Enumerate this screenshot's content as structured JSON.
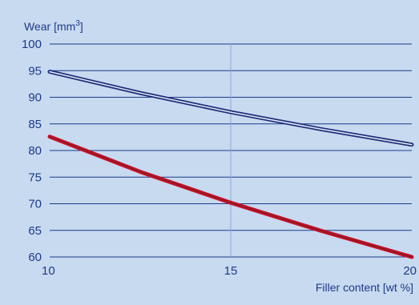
{
  "chart_data": {
    "type": "line",
    "xlabel": "Filler content [wt %]",
    "ylabel": {
      "prefix": "Wear [mm",
      "superscript": "3",
      "suffix": "]"
    },
    "xlim": [
      10,
      20
    ],
    "ylim": [
      60,
      100
    ],
    "x_ticks": [
      10,
      15,
      20
    ],
    "y_ticks": [
      60,
      65,
      70,
      75,
      80,
      85,
      90,
      95,
      100
    ],
    "grid": "horizontal lines at every y tick; one vertical line at x = 15",
    "legend": "none",
    "series": [
      {
        "color": "#1f2f7a",
        "points": [
          [
            10,
            94.8
          ],
          [
            12.5,
            90.8
          ],
          [
            15,
            87.2
          ],
          [
            17.5,
            84.0
          ],
          [
            20,
            81.1
          ]
        ]
      },
      {
        "color": "#c8102e",
        "points": [
          [
            10,
            82.6
          ],
          [
            12.5,
            76.0
          ],
          [
            15,
            70.2
          ],
          [
            17.5,
            64.9
          ],
          [
            20,
            60.0
          ]
        ]
      }
    ],
    "colors": {
      "background": "#c7daf0",
      "grid": "#1e3a8a",
      "text": "#1e3a8a"
    }
  }
}
